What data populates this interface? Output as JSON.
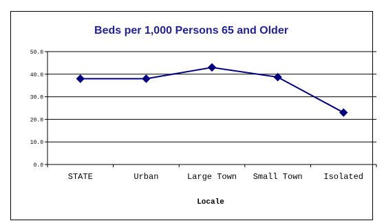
{
  "chart_data": {
    "type": "line",
    "title": "Beds per 1,000 Persons 65 and Older",
    "xlabel": "Locale",
    "ylabel": "",
    "categories": [
      "STATE",
      "Urban",
      "Large Town",
      "Small Town",
      "Isolated"
    ],
    "values": [
      38.0,
      38.0,
      43.0,
      38.7,
      23.0
    ],
    "ylim": [
      0,
      50
    ],
    "yticks": [
      "0.0",
      "10.0",
      "20.0",
      "30.0",
      "40.0",
      "50.0"
    ],
    "grid": true,
    "legend": "none",
    "colors": {
      "line": "#000080",
      "marker": "#000080",
      "title": "#1f1f99"
    }
  }
}
